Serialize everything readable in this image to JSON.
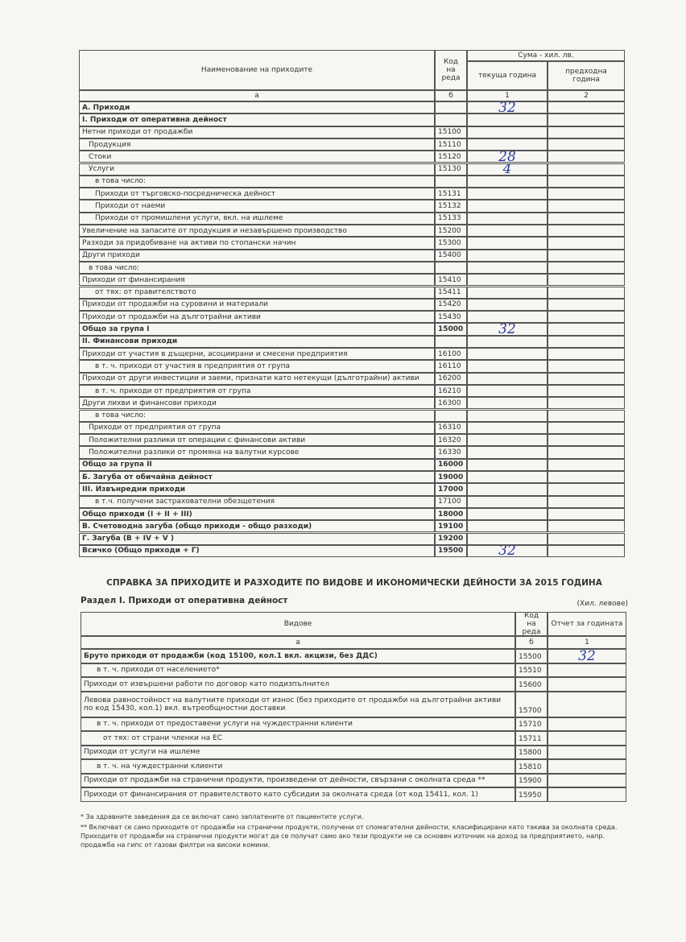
{
  "header": {
    "name_col": "Наименование на приходите",
    "code_col": "Код на реда",
    "sum_col": "Сума - хил. лв.",
    "current_col": "текуща година",
    "previous_col": "предходна година",
    "index": [
      "а",
      "б",
      "1",
      "2"
    ]
  },
  "table": {
    "rows": [
      {
        "name": "А. Приходи",
        "current": "32"
      },
      {
        "name": "І. Приходи от оперативна дейност"
      },
      {
        "name": "Нетни приходи от продажби",
        "code": "15100"
      },
      {
        "name": "Продукция",
        "code": "15110"
      },
      {
        "name": "Стоки",
        "code": "15120",
        "current": "28"
      },
      {
        "name": "Услуги",
        "code": "15130",
        "current": "4"
      },
      {
        "name": "в това число:"
      },
      {
        "name": "Приходи от търговско-посредническа дейност",
        "code": "15131"
      },
      {
        "name": "Приходи от наеми",
        "code": "15132"
      },
      {
        "name": "Приходи от промишлени услуги, вкл. на ишлеме",
        "code": "15133"
      },
      {
        "name": "Увеличение на запасите от продукция и незавършено производство",
        "code": "15200"
      },
      {
        "name": "Разходи за придобиване на активи по стопански начин",
        "code": "15300"
      },
      {
        "name": "Други приходи",
        "code": "15400"
      },
      {
        "name": "в това число:"
      },
      {
        "name": "Приходи от финансирания",
        "code": "15410"
      },
      {
        "name": "от тях: от правителството",
        "code": "15411"
      },
      {
        "name": "Приходи от продажби на суровини и материали",
        "code": "15420"
      },
      {
        "name": "Приходи от продажби на дълготрайни активи",
        "code": "15430"
      },
      {
        "name": "Общо за група I",
        "code": "15000",
        "current": "32"
      },
      {
        "name": "II. Финансови приходи"
      },
      {
        "name": "Приходи от участия в дъщерни, асоциирани и смесени предприятия",
        "code": "16100"
      },
      {
        "name": "в т. ч. приходи от участия в предприятия от група",
        "code": "16110"
      },
      {
        "name": "Приходи от други инвестиции и заеми, признати като нетекущи (дълготрайни) активи",
        "code": "16200"
      },
      {
        "name": "в т. ч. приходи от предприятия от група",
        "code": "16210"
      },
      {
        "name": "Други лихви и финансови приходи",
        "code": "16300"
      },
      {
        "name": "в това число:"
      },
      {
        "name": "Приходи от предприятия от група",
        "code": "16310"
      },
      {
        "name": "Положителни разлики от операции с финансови активи",
        "code": "16320"
      },
      {
        "name": "Положителни разлики от промяна на валутни курсове",
        "code": "16330"
      },
      {
        "name": "Общо за група II",
        "code": "16000"
      },
      {
        "name": "Б. Загуба от обичайна дейност",
        "code": "19000"
      },
      {
        "name": "III. Извънредни приходи",
        "code": "17000"
      },
      {
        "name": "в т.ч. получени застрахователни обезщетения",
        "code": "17100"
      },
      {
        "name": "Общо приходи (I + II + III)",
        "code": "18000"
      },
      {
        "name": "В. Счетоводна загуба (общо приходи - общо разходи)",
        "code": "19100"
      },
      {
        "name": "Г. Загуба (В + IV + V )",
        "code": "19200"
      },
      {
        "name": "Всичко (Общо приходи + Г)",
        "code": "19500",
        "current": "32"
      }
    ]
  },
  "section": {
    "title": "СПРАВКА ЗА ПРИХОДИТЕ И РАЗХОДИТЕ ПО ВИДОВЕ И ИКОНОМИЧЕСКИ ДЕЙНОСТИ ЗА 2015 ГОДИНА",
    "subtitle": "Раздел I. Приходи от оперативна дейност",
    "unit": "(Хил. левове)"
  },
  "header2": {
    "name_col": "Видове",
    "code_col": "Код на реда",
    "value_col": "Отчет за годината",
    "index": [
      "а",
      "б",
      "1"
    ]
  },
  "table2": {
    "rows": [
      {
        "name": "Бруто приходи от продажби  (код 15100, кол.1 вкл. акцизи, без ДДС)",
        "code": "15500",
        "value": "32"
      },
      {
        "name": "в т. ч. приходи от населението*",
        "code": "15510"
      },
      {
        "name": "Приходи от извършени работи по договор като подизпълнител",
        "code": "15600"
      },
      {
        "name": "Левова равностойност на валутните приходи от износ (без приходите от продажби на дълготрайни активи по код 15430, кол.1) вкл. вътреобщностни доставки",
        "code": "15700"
      },
      {
        "name": "в т. ч. приходи от предоставени услуги на чуждестранни клиенти",
        "code": "15710"
      },
      {
        "name": "от тях: от страни членки на ЕС",
        "code": "15711"
      },
      {
        "name": "Приходи от услуги на ишлеме",
        "code": "15800"
      },
      {
        "name": "в т. ч. на чуждестранни клиенти",
        "code": "15810"
      },
      {
        "name": "Приходи от продажби на странични продукти, произведени от дейности, свързани с околната среда **",
        "code": "15900"
      },
      {
        "name": "Приходи от финансирания от правителството като субсидии за околната среда (от код 15411, кол. 1)",
        "code": "15950"
      }
    ]
  },
  "footnotes": [
    "* За здравните заведения да се включат само заплатените от пациентите услуги.",
    "** Включват се само приходите от продажби на странични продукти, получени от спомагателни дейности, класифицирани като такива за околната среда. Приходите от продажби на странични продукти могат да се получат само ако тези продукти не са основен източник на доход за предприятието, напр. продажба на гипс от газови филтри на високи комини."
  ]
}
